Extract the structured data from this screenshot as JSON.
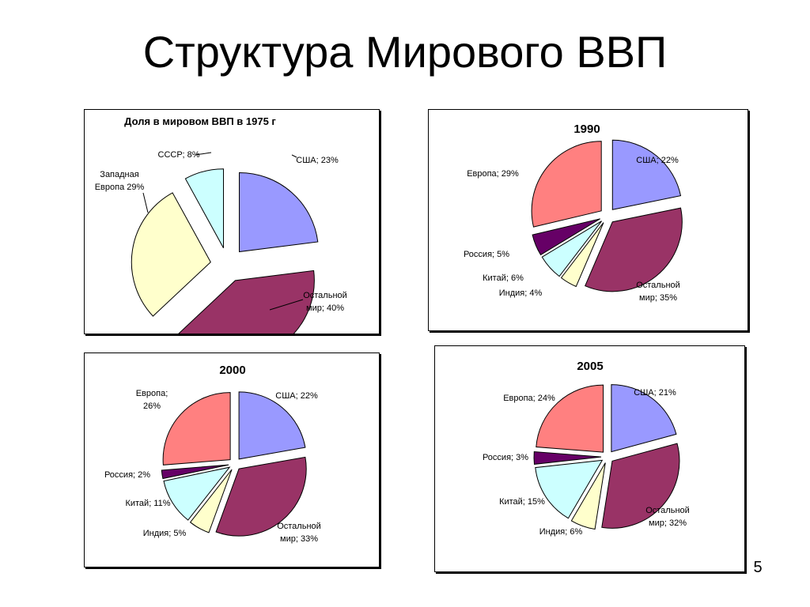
{
  "page": {
    "title": "Структура Мирового ВВП",
    "page_number": "5"
  },
  "chart_data": [
    {
      "type": "pie",
      "title": "Доля в мировом ВВП в 1975 г",
      "slices": [
        {
          "name": "США",
          "value": 23,
          "color": "#9999FF",
          "label_lines": [
            "США; 23%"
          ]
        },
        {
          "name": "Остальной мир",
          "value": 40,
          "color": "#993366",
          "label_lines": [
            "Остальной",
            "мир; 40%"
          ]
        },
        {
          "name": "Западная Европа",
          "value": 29,
          "color": "#FFFFCC",
          "label_lines": [
            "Западная",
            "Европа 29%"
          ]
        },
        {
          "name": "СССР",
          "value": 8,
          "color": "#CCFFFF",
          "label_lines": [
            "СССР; 8%"
          ]
        }
      ]
    },
    {
      "type": "pie",
      "title": "1990",
      "slices": [
        {
          "name": "США",
          "value": 22,
          "color": "#9999FF",
          "label_lines": [
            "США; 22%"
          ]
        },
        {
          "name": "Остальной мир",
          "value": 35,
          "color": "#993366",
          "label_lines": [
            "Остальной",
            "мир; 35%"
          ]
        },
        {
          "name": "Индия",
          "value": 4,
          "color": "#FFFFCC",
          "label_lines": [
            "Индия; 4%"
          ]
        },
        {
          "name": "Китай",
          "value": 6,
          "color": "#CCFFFF",
          "label_lines": [
            "Китай; 6%"
          ]
        },
        {
          "name": "Россия",
          "value": 5,
          "color": "#660066",
          "label_lines": [
            "Россия; 5%"
          ]
        },
        {
          "name": "Европа",
          "value": 29,
          "color": "#FF8080",
          "label_lines": [
            "Европа; 29%"
          ]
        }
      ]
    },
    {
      "type": "pie",
      "title": "2000",
      "slices": [
        {
          "name": "США",
          "value": 22,
          "color": "#9999FF",
          "label_lines": [
            "США; 22%"
          ]
        },
        {
          "name": "Остальной мир",
          "value": 33,
          "color": "#993366",
          "label_lines": [
            "Остальной",
            "мир; 33%"
          ]
        },
        {
          "name": "Индия",
          "value": 5,
          "color": "#FFFFCC",
          "label_lines": [
            "Индия; 5%"
          ]
        },
        {
          "name": "Китай",
          "value": 11,
          "color": "#CCFFFF",
          "label_lines": [
            "Китай; 11%"
          ]
        },
        {
          "name": "Россия",
          "value": 2,
          "color": "#660066",
          "label_lines": [
            "Россия; 2%"
          ]
        },
        {
          "name": "Европа",
          "value": 26,
          "color": "#FF8080",
          "label_lines": [
            "Европа;",
            "26%"
          ]
        }
      ]
    },
    {
      "type": "pie",
      "title": "2005",
      "slices": [
        {
          "name": "США",
          "value": 21,
          "color": "#9999FF",
          "label_lines": [
            "США; 21%"
          ]
        },
        {
          "name": "Остальной мир",
          "value": 32,
          "color": "#993366",
          "label_lines": [
            "Остальной",
            "мир; 32%"
          ]
        },
        {
          "name": "Индия",
          "value": 6,
          "color": "#FFFFCC",
          "label_lines": [
            "Индия; 6%"
          ]
        },
        {
          "name": "Китай",
          "value": 15,
          "color": "#CCFFFF",
          "label_lines": [
            "Китай; 15%"
          ]
        },
        {
          "name": "Россия",
          "value": 3,
          "color": "#660066",
          "label_lines": [
            "Россия; 3%"
          ]
        },
        {
          "name": "Европа",
          "value": 24,
          "color": "#FF8080",
          "label_lines": [
            "Европа; 24%"
          ]
        }
      ]
    }
  ]
}
